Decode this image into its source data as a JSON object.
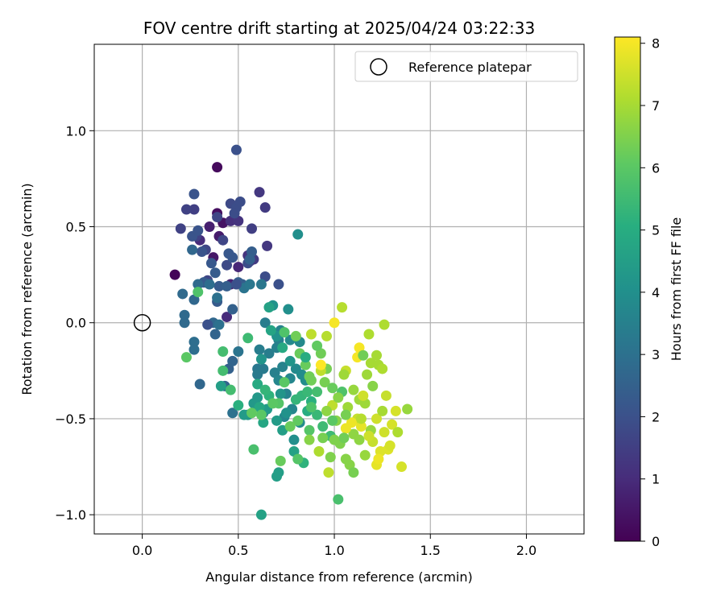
{
  "chart_data": {
    "type": "scatter",
    "title": "FOV centre drift starting at 2025/04/24 03:22:33",
    "xlabel": "Angular distance from reference (arcmin)",
    "ylabel": "Rotation from reference (arcmin)",
    "xlim": [
      -0.25,
      2.3
    ],
    "ylim": [
      -1.1,
      1.45
    ],
    "xticks": [
      0.0,
      0.5,
      1.0,
      1.5,
      2.0
    ],
    "xtick_labels": [
      "0.0",
      "0.5",
      "1.0",
      "1.5",
      "2.0"
    ],
    "yticks": [
      -1.0,
      -0.5,
      0.0,
      0.5,
      1.0
    ],
    "ytick_labels": [
      "−1.0",
      "−0.5",
      "0.0",
      "0.5",
      "1.0"
    ],
    "grid": true,
    "legend": {
      "position": "top-right",
      "entries": [
        {
          "label": "Reference platepar",
          "marker": "open-circle"
        }
      ]
    },
    "reference_point": {
      "x": 0.0,
      "y": 0.0
    },
    "colorbar": {
      "label": "Hours from first FF file",
      "range": [
        0,
        8.1
      ],
      "ticks": [
        0,
        1,
        2,
        3,
        4,
        5,
        6,
        7,
        8
      ],
      "tick_labels": [
        "0",
        "1",
        "2",
        "3",
        "4",
        "5",
        "6",
        "7",
        "8"
      ],
      "colormap": "viridis"
    },
    "series": [
      {
        "points": [
          [
            0.17,
            0.25,
            0.1
          ],
          [
            0.39,
            0.81,
            0.2
          ],
          [
            0.39,
            0.57,
            0.3
          ],
          [
            0.42,
            0.52,
            0.4
          ],
          [
            0.37,
            0.34,
            0.5
          ],
          [
            0.4,
            0.45,
            0.6
          ],
          [
            0.35,
            0.5,
            0.7
          ],
          [
            0.46,
            0.2,
            0.8
          ],
          [
            0.5,
            0.29,
            0.9
          ],
          [
            0.44,
            0.03,
            1.0
          ],
          [
            0.3,
            0.43,
            1.0
          ],
          [
            0.46,
            0.53,
            1.1
          ],
          [
            0.5,
            0.53,
            1.2
          ],
          [
            0.55,
            0.35,
            1.2
          ],
          [
            0.56,
            0.32,
            1.3
          ],
          [
            0.61,
            0.68,
            1.3
          ],
          [
            0.65,
            0.4,
            1.3
          ],
          [
            0.64,
            0.6,
            1.4
          ],
          [
            0.58,
            0.33,
            1.4
          ],
          [
            0.57,
            0.49,
            1.5
          ],
          [
            0.27,
            0.59,
            1.5
          ],
          [
            0.2,
            0.49,
            1.6
          ],
          [
            0.23,
            0.59,
            1.6
          ],
          [
            0.28,
            0.45,
            1.6
          ],
          [
            0.34,
            0.22,
            1.7
          ],
          [
            0.33,
            0.38,
            1.7
          ],
          [
            0.39,
            0.55,
            1.7
          ],
          [
            0.42,
            0.43,
            1.7
          ],
          [
            0.44,
            0.3,
            1.8
          ],
          [
            0.46,
            0.62,
            1.8
          ],
          [
            0.49,
            0.6,
            1.9
          ],
          [
            0.51,
            0.63,
            1.9
          ],
          [
            0.48,
            0.57,
            1.9
          ],
          [
            0.55,
            0.31,
            1.9
          ],
          [
            0.64,
            0.24,
            1.9
          ],
          [
            0.71,
            0.2,
            2.0
          ],
          [
            0.49,
            0.9,
            2.0
          ],
          [
            0.27,
            0.67,
            2.1
          ],
          [
            0.26,
            0.45,
            2.1
          ],
          [
            0.29,
            0.48,
            2.1
          ],
          [
            0.31,
            0.37,
            2.1
          ],
          [
            0.36,
            0.31,
            2.2
          ],
          [
            0.47,
            0.34,
            2.2
          ],
          [
            0.45,
            0.36,
            2.2
          ],
          [
            0.39,
            0.11,
            2.3
          ],
          [
            0.4,
            0.19,
            2.3
          ],
          [
            0.32,
            0.21,
            2.3
          ],
          [
            0.38,
            0.26,
            2.3
          ],
          [
            0.44,
            0.19,
            2.4
          ],
          [
            0.5,
            0.21,
            2.4
          ],
          [
            0.52,
            0.2,
            2.4
          ],
          [
            0.57,
            0.37,
            2.4
          ],
          [
            0.56,
            0.33,
            2.5
          ],
          [
            0.47,
            0.07,
            2.5
          ],
          [
            0.45,
            -0.24,
            2.5
          ],
          [
            0.43,
            -0.33,
            2.6
          ],
          [
            0.47,
            -0.2,
            2.6
          ],
          [
            0.38,
            -0.06,
            2.6
          ],
          [
            0.3,
            -0.32,
            2.7
          ],
          [
            0.37,
            0.0,
            2.7
          ],
          [
            0.26,
            0.38,
            2.7
          ],
          [
            0.27,
            0.12,
            2.7
          ],
          [
            0.22,
            0.04,
            2.8
          ],
          [
            0.22,
            0.0,
            2.8
          ],
          [
            0.21,
            0.15,
            2.8
          ],
          [
            0.27,
            -0.14,
            2.9
          ],
          [
            0.27,
            -0.1,
            2.9
          ],
          [
            0.35,
            0.2,
            2.9
          ],
          [
            0.39,
            0.13,
            3.0
          ],
          [
            0.4,
            -0.01,
            3.0
          ],
          [
            0.47,
            -0.47,
            3.0
          ],
          [
            0.5,
            -0.15,
            3.1
          ],
          [
            0.53,
            0.18,
            3.1
          ],
          [
            0.56,
            0.2,
            3.2
          ],
          [
            0.6,
            -0.24,
            3.2
          ],
          [
            0.62,
            0.2,
            3.2
          ],
          [
            0.6,
            -0.27,
            3.3
          ],
          [
            0.63,
            -0.24,
            3.3
          ],
          [
            0.63,
            -0.47,
            3.3
          ],
          [
            0.61,
            -0.14,
            3.4
          ],
          [
            0.64,
            0.0,
            3.4
          ],
          [
            0.66,
            -0.16,
            3.4
          ],
          [
            0.7,
            -0.13,
            3.5
          ],
          [
            0.69,
            -0.26,
            3.5
          ],
          [
            0.71,
            -0.09,
            3.5
          ],
          [
            0.72,
            -0.04,
            3.6
          ],
          [
            0.73,
            -0.23,
            3.6
          ],
          [
            0.75,
            -0.37,
            3.6
          ],
          [
            0.71,
            -0.3,
            3.7
          ],
          [
            0.74,
            -0.49,
            3.7
          ],
          [
            0.77,
            -0.29,
            3.7
          ],
          [
            0.78,
            -0.45,
            3.7
          ],
          [
            0.8,
            -0.24,
            3.8
          ],
          [
            0.82,
            -0.1,
            3.8
          ],
          [
            0.77,
            -0.09,
            3.8
          ],
          [
            0.83,
            -0.27,
            3.9
          ],
          [
            0.85,
            -0.3,
            3.9
          ],
          [
            0.82,
            -0.52,
            3.9
          ],
          [
            0.79,
            -0.61,
            4.0
          ],
          [
            0.76,
            0.07,
            4.0
          ],
          [
            0.81,
            0.46,
            4.0
          ],
          [
            0.68,
            0.09,
            4.1
          ],
          [
            0.7,
            -0.07,
            4.1
          ],
          [
            0.75,
            -0.47,
            4.1
          ],
          [
            0.77,
            -0.2,
            4.2
          ],
          [
            0.72,
            -0.37,
            4.2
          ],
          [
            0.62,
            -0.19,
            4.2
          ],
          [
            0.6,
            -0.39,
            4.3
          ],
          [
            0.58,
            -0.42,
            4.3
          ],
          [
            0.55,
            -0.48,
            4.3
          ],
          [
            0.53,
            -0.48,
            4.4
          ],
          [
            0.65,
            -0.45,
            4.4
          ],
          [
            0.7,
            -0.51,
            4.4
          ],
          [
            0.73,
            -0.56,
            4.5
          ],
          [
            0.7,
            -0.8,
            4.5
          ],
          [
            0.71,
            -0.78,
            4.5
          ],
          [
            0.79,
            -0.67,
            4.6
          ],
          [
            0.62,
            -1.0,
            4.6
          ],
          [
            0.66,
            0.08,
            4.6
          ],
          [
            0.67,
            -0.04,
            4.7
          ],
          [
            0.63,
            -0.52,
            4.8
          ],
          [
            0.61,
            -0.44,
            4.8
          ],
          [
            0.6,
            -0.32,
            4.9
          ],
          [
            0.86,
            -0.46,
            5.0
          ],
          [
            0.88,
            -0.41,
            5.1
          ],
          [
            0.84,
            -0.73,
            5.2
          ],
          [
            0.66,
            -0.38,
            5.2
          ],
          [
            0.8,
            -0.4,
            5.3
          ],
          [
            0.83,
            -0.38,
            5.3
          ],
          [
            0.86,
            -0.36,
            5.4
          ],
          [
            0.91,
            -0.48,
            5.4
          ],
          [
            0.94,
            -0.54,
            5.5
          ],
          [
            0.98,
            -0.59,
            5.5
          ],
          [
            0.55,
            -0.08,
            5.5
          ],
          [
            0.42,
            -0.15,
            5.6
          ],
          [
            0.46,
            -0.35,
            5.6
          ],
          [
            0.42,
            -0.25,
            5.6
          ],
          [
            0.58,
            -0.66,
            5.7
          ],
          [
            1.02,
            -0.92,
            5.7
          ],
          [
            1.04,
            -0.36,
            5.8
          ],
          [
            0.88,
            -0.44,
            5.8
          ],
          [
            0.87,
            -0.56,
            5.9
          ],
          [
            0.71,
            -0.42,
            5.9
          ],
          [
            0.68,
            -0.42,
            6.0
          ],
          [
            0.62,
            -0.48,
            6.0
          ],
          [
            0.57,
            -0.47,
            6.1
          ],
          [
            0.81,
            -0.51,
            6.1
          ],
          [
            0.77,
            -0.54,
            6.2
          ],
          [
            0.82,
            -0.16,
            6.2
          ],
          [
            0.85,
            -0.22,
            6.2
          ],
          [
            0.87,
            -0.28,
            6.3
          ],
          [
            0.88,
            -0.3,
            6.3
          ],
          [
            0.93,
            -0.16,
            6.3
          ],
          [
            0.95,
            -0.31,
            6.4
          ],
          [
            0.96,
            -0.24,
            6.4
          ],
          [
            0.94,
            -0.6,
            6.4
          ],
          [
            0.98,
            -0.7,
            6.5
          ],
          [
            1.0,
            -0.61,
            6.5
          ],
          [
            1.03,
            -0.63,
            6.5
          ],
          [
            1.06,
            -0.71,
            6.6
          ],
          [
            1.08,
            -0.74,
            6.6
          ],
          [
            1.01,
            -0.51,
            6.6
          ],
          [
            1.1,
            -0.58,
            6.7
          ],
          [
            1.13,
            -0.61,
            6.7
          ],
          [
            1.16,
            -0.69,
            6.8
          ],
          [
            1.19,
            -0.56,
            6.8
          ],
          [
            1.1,
            -0.35,
            6.8
          ],
          [
            1.13,
            -0.4,
            6.9
          ],
          [
            1.16,
            -0.42,
            6.9
          ],
          [
            1.17,
            -0.27,
            6.9
          ],
          [
            1.19,
            -0.21,
            7.0
          ],
          [
            1.22,
            -0.17,
            7.0
          ],
          [
            1.23,
            -0.22,
            7.0
          ],
          [
            1.25,
            -0.24,
            7.1
          ],
          [
            1.26,
            -0.01,
            7.1
          ],
          [
            1.18,
            -0.06,
            7.1
          ],
          [
            1.04,
            0.08,
            7.2
          ],
          [
            0.96,
            -0.07,
            7.2
          ],
          [
            0.88,
            -0.06,
            7.3
          ],
          [
            0.93,
            -0.25,
            7.3
          ],
          [
            0.99,
            -0.43,
            7.3
          ],
          [
            1.06,
            -0.25,
            7.4
          ],
          [
            1.12,
            -0.5,
            7.4
          ],
          [
            1.15,
            -0.38,
            7.5
          ],
          [
            1.22,
            -0.5,
            7.5
          ],
          [
            1.26,
            -0.57,
            7.5
          ],
          [
            1.3,
            -0.53,
            7.6
          ],
          [
            1.32,
            -0.46,
            7.6
          ],
          [
            1.35,
            -0.75,
            7.6
          ],
          [
            1.28,
            -0.66,
            7.7
          ],
          [
            1.24,
            -0.67,
            7.7
          ],
          [
            1.22,
            -0.74,
            7.8
          ],
          [
            1.14,
            -0.54,
            7.8
          ],
          [
            1.09,
            -0.52,
            7.9
          ],
          [
            1.06,
            -0.55,
            7.9
          ],
          [
            1.12,
            -0.18,
            8.0
          ],
          [
            1.13,
            -0.13,
            8.0
          ],
          [
            0.93,
            -0.22,
            8.1
          ],
          [
            1.0,
            0.0,
            8.0
          ],
          [
            1.38,
            -0.45,
            6.8
          ],
          [
            1.33,
            -0.57,
            7.1
          ],
          [
            1.27,
            -0.38,
            7.4
          ],
          [
            1.2,
            -0.33,
            6.6
          ],
          [
            1.15,
            -0.17,
            6.3
          ],
          [
            1.05,
            -0.27,
            6.9
          ],
          [
            0.99,
            -0.34,
            6.2
          ],
          [
            0.96,
            -0.46,
            6.7
          ],
          [
            0.97,
            -0.78,
            7.3
          ],
          [
            1.1,
            -0.78,
            6.4
          ],
          [
            1.29,
            -0.64,
            7.6
          ],
          [
            1.25,
            -0.46,
            7.0
          ],
          [
            0.92,
            -0.67,
            7.1
          ],
          [
            0.87,
            -0.61,
            6.6
          ],
          [
            0.91,
            -0.12,
            6.1
          ],
          [
            0.8,
            -0.07,
            6.3
          ],
          [
            0.74,
            -0.31,
            6.0
          ],
          [
            0.74,
            -0.05,
            5.8
          ],
          [
            0.72,
            -0.72,
            6.2
          ],
          [
            0.81,
            -0.71,
            5.9
          ],
          [
            0.5,
            -0.43,
            5.1
          ],
          [
            0.64,
            -0.35,
            5.3
          ],
          [
            1.02,
            -0.39,
            6.6
          ],
          [
            1.07,
            -0.44,
            6.9
          ],
          [
            1.14,
            -0.5,
            7.2
          ],
          [
            1.2,
            -0.62,
            7.4
          ],
          [
            1.05,
            -0.6,
            6.3
          ],
          [
            0.99,
            -0.51,
            6.0
          ],
          [
            0.73,
            -0.13,
            4.9
          ],
          [
            0.85,
            -0.18,
            5.0
          ],
          [
            0.91,
            -0.36,
            5.6
          ],
          [
            1.06,
            -0.48,
            6.4
          ],
          [
            1.18,
            -0.59,
            7.5
          ],
          [
            1.23,
            -0.71,
            7.9
          ],
          [
            0.34,
            -0.01,
            2.0
          ],
          [
            0.29,
            0.2,
            2.8
          ],
          [
            0.29,
            0.16,
            5.8
          ],
          [
            0.23,
            -0.18,
            6.0
          ],
          [
            0.41,
            -0.33,
            4.5
          ],
          [
            0.49,
            0.2,
            2.0
          ]
        ]
      }
    ]
  }
}
